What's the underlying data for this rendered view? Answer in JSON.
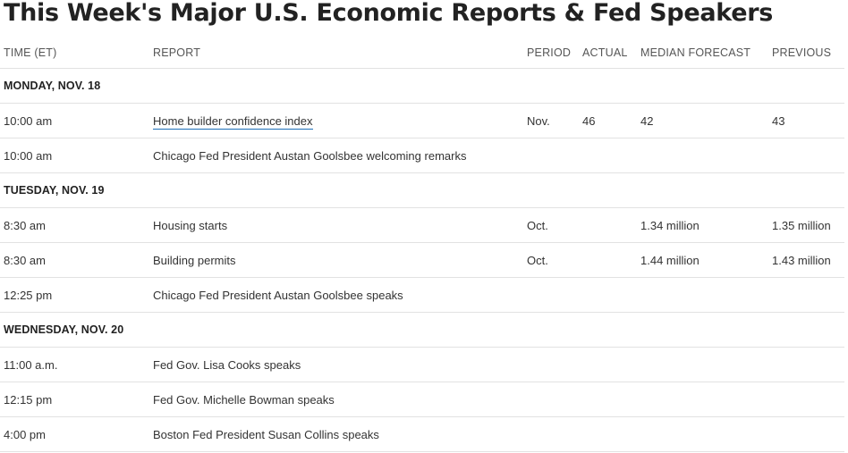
{
  "title": "This Week's Major U.S. Economic Reports & Fed Speakers",
  "columns": {
    "time": "TIME (ET)",
    "report": "REPORT",
    "period": "PERIOD",
    "actual": "ACTUAL",
    "median": "MEDIAN FORECAST",
    "previous": "PREVIOUS"
  },
  "days": [
    {
      "label": "MONDAY, NOV. 18",
      "rows": [
        {
          "time": "10:00 am",
          "report": "Home builder confidence index",
          "period": "Nov.",
          "actual": "46",
          "median": "42",
          "previous": "43"
        },
        {
          "time": "10:00 am",
          "report": "Chicago Fed President Austan Goolsbee welcoming remarks",
          "period": "",
          "actual": "",
          "median": "",
          "previous": ""
        }
      ]
    },
    {
      "label": "TUESDAY, NOV. 19",
      "rows": [
        {
          "time": "8:30 am",
          "report": "Housing starts",
          "period": "Oct.",
          "actual": "",
          "median": "1.34 million",
          "previous": "1.35 million"
        },
        {
          "time": "8:30 am",
          "report": "Building permits",
          "period": "Oct.",
          "actual": "",
          "median": "1.44 million",
          "previous": "1.43 million"
        },
        {
          "time": "12:25 pm",
          "report": "Chicago Fed President Austan Goolsbee speaks",
          "period": "",
          "actual": "",
          "median": "",
          "previous": ""
        }
      ]
    },
    {
      "label": "WEDNESDAY, NOV. 20",
      "rows": [
        {
          "time": "11:00 a.m.",
          "report": "Fed Gov. Lisa Cooks speaks",
          "period": "",
          "actual": "",
          "median": "",
          "previous": ""
        },
        {
          "time": "12:15 pm",
          "report": "Fed Gov. Michelle Bowman speaks",
          "period": "",
          "actual": "",
          "median": "",
          "previous": ""
        },
        {
          "time": "4:00 pm",
          "report": "Boston Fed President Susan Collins speaks",
          "period": "",
          "actual": "",
          "median": "",
          "previous": ""
        }
      ]
    }
  ]
}
